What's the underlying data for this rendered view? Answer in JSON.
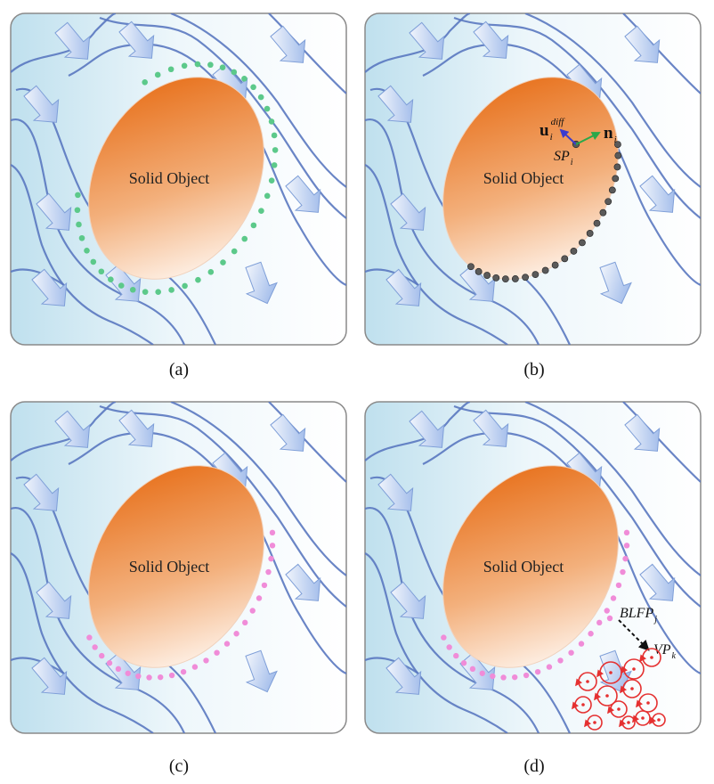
{
  "panels": [
    {
      "label": "(a)",
      "object_label": "Solid Object",
      "particle_kind": "surface-dots",
      "particle_color": "#5cc98a"
    },
    {
      "label": "(b)",
      "object_label": "Solid Object",
      "particle_kind": "surface-points",
      "particle_color": "#555555",
      "annotations": {
        "u_main": "u",
        "u_sub": "i",
        "u_sup": "diff",
        "n_main": "n",
        "n_sub": "i",
        "sp_main": "SP",
        "sp_sub": "i"
      }
    },
    {
      "label": "(c)",
      "object_label": "Solid Object",
      "particle_kind": "boundary-layer-dots",
      "particle_color": "#f08cd8"
    },
    {
      "label": "(d)",
      "object_label": "Solid Object",
      "particle_kind": "boundary-layer-dots",
      "particle_color": "#f08cd8",
      "annotations": {
        "blfp_main": "BLFP",
        "blfp_sub": "j",
        "vp_main": "VP",
        "vp_sub": "k"
      }
    }
  ],
  "colors": {
    "panel_border": "#8a8a8a",
    "streamline": "#5a78c0",
    "object_dark": "#e8731f",
    "object_light": "#fff4ec",
    "arrow_fill": "#9bb8e8",
    "vortex": "#e53030",
    "u_arrow": "#3a3ad0",
    "n_arrow": "#2aa84a"
  }
}
